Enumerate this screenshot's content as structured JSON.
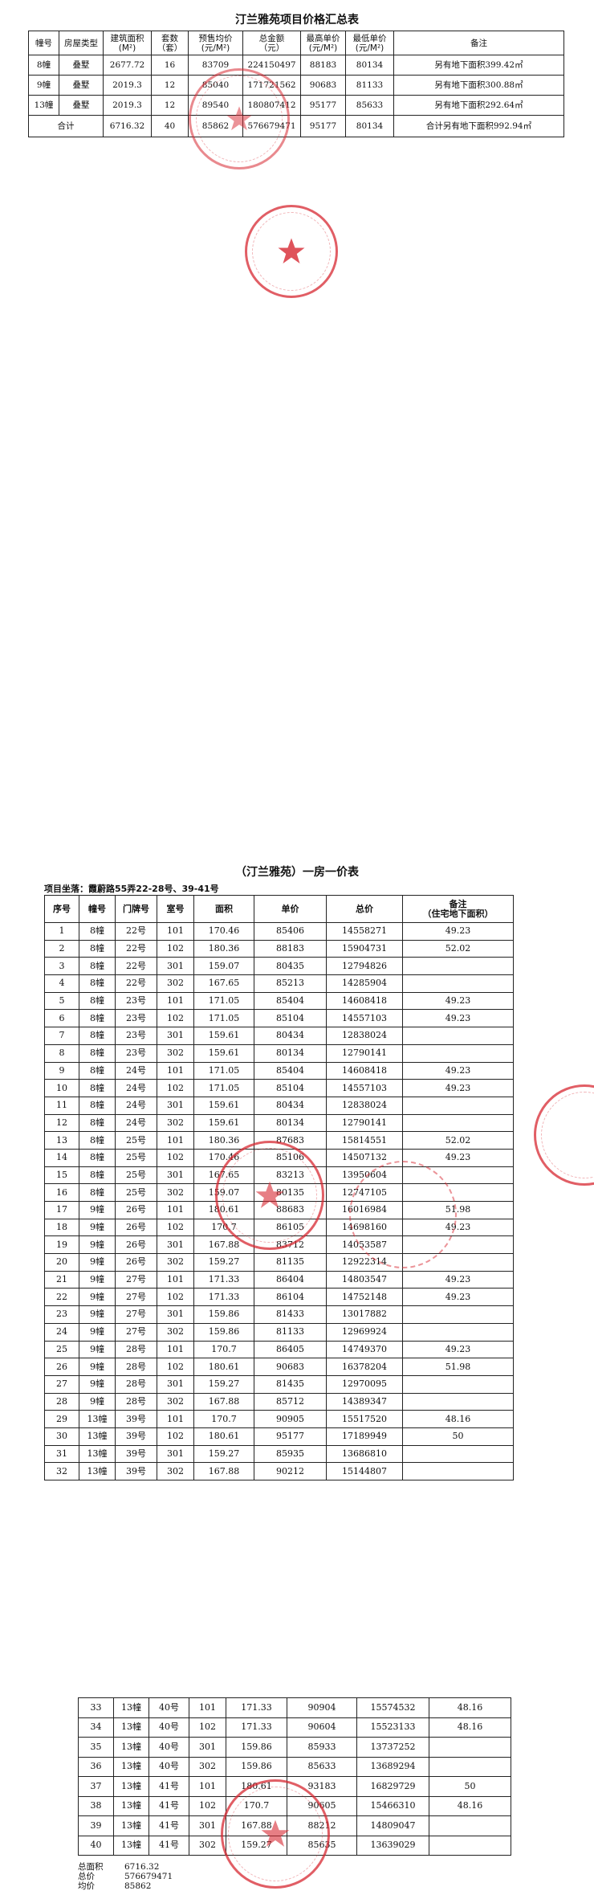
{
  "summary": {
    "title": "汀兰雅苑项目价格汇总表",
    "headers": [
      "幢号",
      "房屋类型",
      "建筑面积\n(M²)",
      "套数\n（套）",
      "预售均价\n(元/M²)",
      "总金额\n（元）",
      "最高单价\n(元/M²)",
      "最低单价\n(元/M²)",
      "备注"
    ],
    "rows": [
      [
        "8幢",
        "叠墅",
        "2677.72",
        "16",
        "83709",
        "224150497",
        "88183",
        "80134",
        "另有地下面积399.42㎡"
      ],
      [
        "9幢",
        "叠墅",
        "2019.3",
        "12",
        "85040",
        "171721562",
        "90683",
        "81133",
        "另有地下面积300.88㎡"
      ],
      [
        "13幢",
        "叠墅",
        "2019.3",
        "12",
        "89540",
        "180807412",
        "95177",
        "85633",
        "另有地下面积292.64㎡"
      ]
    ],
    "total_row": [
      "合计",
      "6716.32",
      "40",
      "85862",
      "576679471",
      "95177",
      "80134",
      "合计另有地下面积992.94㎡"
    ]
  },
  "price_list": {
    "title": "（汀兰雅苑）一房一价表",
    "address": "项目坐落：霞蔚路55弄22-28号、39-41号",
    "headers": [
      "序号",
      "幢号",
      "门牌号",
      "室号",
      "面积",
      "单价",
      "总价",
      "备注\n（住宅地下面积）"
    ],
    "rows": [
      [
        "1",
        "8幢",
        "22号",
        "101",
        "170.46",
        "85406",
        "14558271",
        "49.23"
      ],
      [
        "2",
        "8幢",
        "22号",
        "102",
        "180.36",
        "88183",
        "15904731",
        "52.02"
      ],
      [
        "3",
        "8幢",
        "22号",
        "301",
        "159.07",
        "80435",
        "12794826",
        ""
      ],
      [
        "4",
        "8幢",
        "22号",
        "302",
        "167.65",
        "85213",
        "14285904",
        ""
      ],
      [
        "5",
        "8幢",
        "23号",
        "101",
        "171.05",
        "85404",
        "14608418",
        "49.23"
      ],
      [
        "6",
        "8幢",
        "23号",
        "102",
        "171.05",
        "85104",
        "14557103",
        "49.23"
      ],
      [
        "7",
        "8幢",
        "23号",
        "301",
        "159.61",
        "80434",
        "12838024",
        ""
      ],
      [
        "8",
        "8幢",
        "23号",
        "302",
        "159.61",
        "80134",
        "12790141",
        ""
      ],
      [
        "9",
        "8幢",
        "24号",
        "101",
        "171.05",
        "85404",
        "14608418",
        "49.23"
      ],
      [
        "10",
        "8幢",
        "24号",
        "102",
        "171.05",
        "85104",
        "14557103",
        "49.23"
      ],
      [
        "11",
        "8幢",
        "24号",
        "301",
        "159.61",
        "80434",
        "12838024",
        ""
      ],
      [
        "12",
        "8幢",
        "24号",
        "302",
        "159.61",
        "80134",
        "12790141",
        ""
      ],
      [
        "13",
        "8幢",
        "25号",
        "101",
        "180.36",
        "87683",
        "15814551",
        "52.02"
      ],
      [
        "14",
        "8幢",
        "25号",
        "102",
        "170.46",
        "85106",
        "14507132",
        "49.23"
      ],
      [
        "15",
        "8幢",
        "25号",
        "301",
        "167.65",
        "83213",
        "13950604",
        ""
      ],
      [
        "16",
        "8幢",
        "25号",
        "302",
        "159.07",
        "80135",
        "12747105",
        ""
      ],
      [
        "17",
        "9幢",
        "26号",
        "101",
        "180.61",
        "88683",
        "16016984",
        "51.98"
      ],
      [
        "18",
        "9幢",
        "26号",
        "102",
        "170.7",
        "86105",
        "14698160",
        "49.23"
      ],
      [
        "19",
        "9幢",
        "26号",
        "301",
        "167.88",
        "83712",
        "14053587",
        ""
      ],
      [
        "20",
        "9幢",
        "26号",
        "302",
        "159.27",
        "81135",
        "12922314",
        ""
      ],
      [
        "21",
        "9幢",
        "27号",
        "101",
        "171.33",
        "86404",
        "14803547",
        "49.23"
      ],
      [
        "22",
        "9幢",
        "27号",
        "102",
        "171.33",
        "86104",
        "14752148",
        "49.23"
      ],
      [
        "23",
        "9幢",
        "27号",
        "301",
        "159.86",
        "81433",
        "13017882",
        ""
      ],
      [
        "24",
        "9幢",
        "27号",
        "302",
        "159.86",
        "81133",
        "12969924",
        ""
      ],
      [
        "25",
        "9幢",
        "28号",
        "101",
        "170.7",
        "86405",
        "14749370",
        "49.23"
      ],
      [
        "26",
        "9幢",
        "28号",
        "102",
        "180.61",
        "90683",
        "16378204",
        "51.98"
      ],
      [
        "27",
        "9幢",
        "28号",
        "301",
        "159.27",
        "81435",
        "12970095",
        ""
      ],
      [
        "28",
        "9幢",
        "28号",
        "302",
        "167.88",
        "85712",
        "14389347",
        ""
      ],
      [
        "29",
        "13幢",
        "39号",
        "101",
        "170.7",
        "90905",
        "15517520",
        "48.16"
      ],
      [
        "30",
        "13幢",
        "39号",
        "102",
        "180.61",
        "95177",
        "17189949",
        "50"
      ],
      [
        "31",
        "13幢",
        "39号",
        "301",
        "159.27",
        "85935",
        "13686810",
        ""
      ],
      [
        "32",
        "13幢",
        "39号",
        "302",
        "167.88",
        "90212",
        "15144807",
        ""
      ]
    ],
    "rows_continued": [
      [
        "33",
        "13幢",
        "40号",
        "101",
        "171.33",
        "90904",
        "15574532",
        "48.16"
      ],
      [
        "34",
        "13幢",
        "40号",
        "102",
        "171.33",
        "90604",
        "15523133",
        "48.16"
      ],
      [
        "35",
        "13幢",
        "40号",
        "301",
        "159.86",
        "85933",
        "13737252",
        ""
      ],
      [
        "36",
        "13幢",
        "40号",
        "302",
        "159.86",
        "85633",
        "13689294",
        ""
      ],
      [
        "37",
        "13幢",
        "41号",
        "101",
        "180.61",
        "93183",
        "16829729",
        "50"
      ],
      [
        "38",
        "13幢",
        "41号",
        "102",
        "170.7",
        "90605",
        "15466310",
        "48.16"
      ],
      [
        "39",
        "13幢",
        "41号",
        "301",
        "167.88",
        "88212",
        "14809047",
        ""
      ],
      [
        "40",
        "13幢",
        "41号",
        "302",
        "159.27",
        "85635",
        "13639029",
        ""
      ]
    ],
    "totals": {
      "area_label": "总面积",
      "area": "6716.32",
      "price_label": "总价",
      "price": "576679471",
      "avg_label": "均价",
      "avg": "85862"
    }
  },
  "colors": {
    "stamp": "#d72832"
  }
}
